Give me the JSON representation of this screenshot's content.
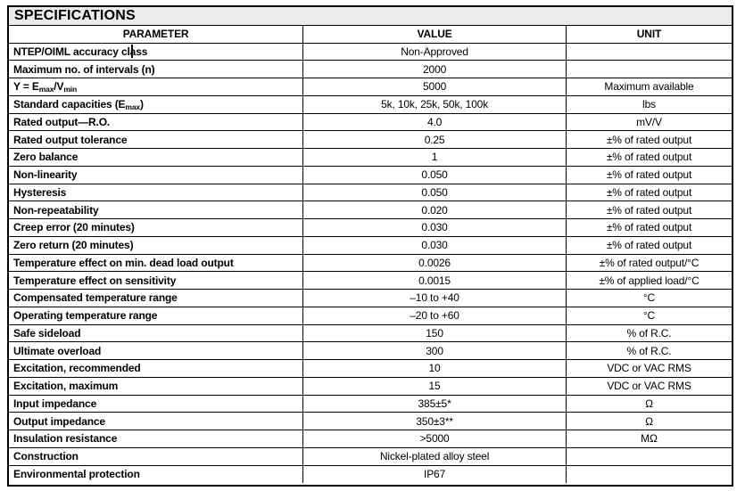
{
  "title": "SPECIFICATIONS",
  "colors": {
    "border": "#000000",
    "text": "#000000",
    "title_row_background": "#ebebeb",
    "page_background": "#ffffff"
  },
  "table": {
    "headers": [
      "PARAMETER",
      "VALUE",
      "UNIT"
    ],
    "rows": [
      {
        "param": "NTEP/OIML accuracy class",
        "value": "Non-Approved",
        "unit": ""
      },
      {
        "param": "Maximum no. of intervals (n)",
        "value": "2000",
        "unit": ""
      },
      {
        "param": "Y = E~max~/V~min~",
        "value": "5000",
        "unit": "Maximum available"
      },
      {
        "param": "Standard capacities (E~max~)",
        "value": "5k, 10k, 25k, 50k, 100k",
        "unit": "lbs"
      },
      {
        "param": "Rated output—R.O.",
        "value": "4.0",
        "unit": "mV/V"
      },
      {
        "param": "Rated output tolerance",
        "value": "0.25",
        "unit": "±% of rated output"
      },
      {
        "param": "Zero balance",
        "value": "1",
        "unit": "±% of rated output"
      },
      {
        "param": "Non-linearity",
        "value": "0.050",
        "unit": "±% of rated output"
      },
      {
        "param": "Hysteresis",
        "value": "0.050",
        "unit": "±% of rated output"
      },
      {
        "param": "Non-repeatability",
        "value": "0.020",
        "unit": "±% of rated output"
      },
      {
        "param": "Creep error (20 minutes)",
        "value": "0.030",
        "unit": "±% of rated output"
      },
      {
        "param": "Zero return (20 minutes)",
        "value": "0.030",
        "unit": "±% of rated output"
      },
      {
        "param": "Temperature effect on min. dead load output",
        "value": "0.0026",
        "unit": "±% of rated output/°C"
      },
      {
        "param": "Temperature effect on sensitivity",
        "value": "0.0015",
        "unit": "±% of applied load/°C"
      },
      {
        "param": "Compensated temperature range",
        "value": "–10 to +40",
        "unit": "°C"
      },
      {
        "param": "Operating temperature range",
        "value": "–20 to +60",
        "unit": "°C"
      },
      {
        "param": "Safe sideload",
        "value": "150",
        "unit": "% of R.C."
      },
      {
        "param": "Ultimate overload",
        "value": "300",
        "unit": "% of R.C."
      },
      {
        "param": "Excitation, recommended",
        "value": "10",
        "unit": "VDC or VAC RMS"
      },
      {
        "param": "Excitation, maximum",
        "value": "15",
        "unit": "VDC or VAC RMS"
      },
      {
        "param": "Input impedance",
        "value": "385±5*",
        "unit": "Ω"
      },
      {
        "param": "Output impedance",
        "value": "350±3**",
        "unit": "Ω"
      },
      {
        "param": "Insulation resistance",
        "value": ">5000",
        "unit": "MΩ"
      },
      {
        "param": "Construction",
        "value": "Nickel-plated alloy steel",
        "unit": ""
      },
      {
        "param": "Environmental protection",
        "value": "IP67",
        "unit": ""
      }
    ]
  }
}
